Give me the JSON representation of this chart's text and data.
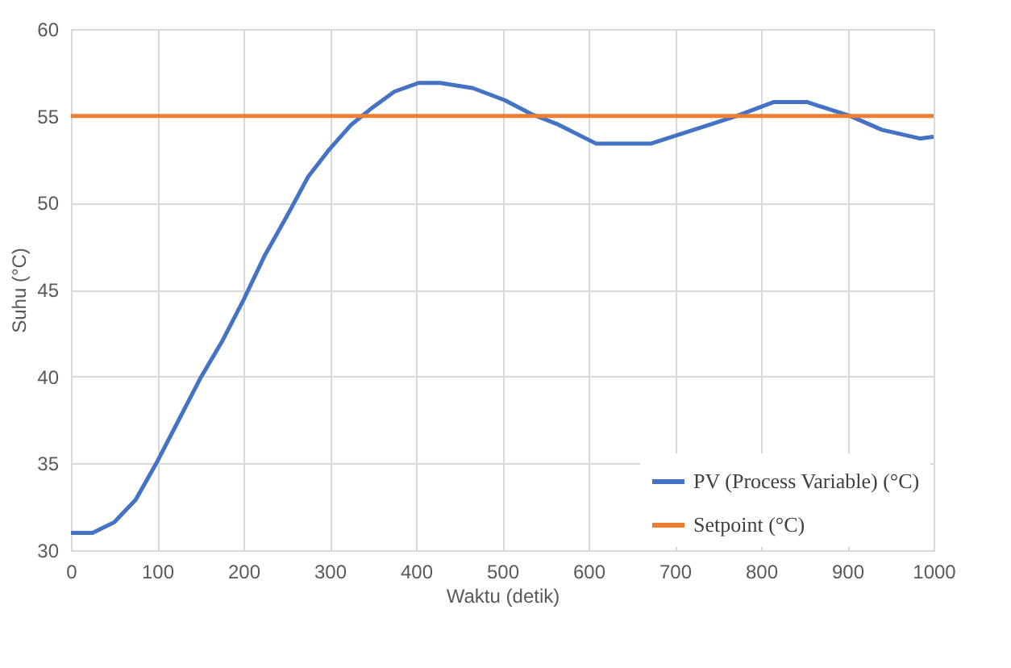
{
  "chart_data": {
    "type": "line",
    "xlabel": "Waktu (detik)",
    "ylabel": "Suhu (°C)",
    "xlim": [
      0,
      1000
    ],
    "xticks": [
      0,
      100,
      200,
      300,
      400,
      500,
      600,
      700,
      800,
      900,
      1000
    ],
    "ylim": [
      30,
      60
    ],
    "yticks": [
      30,
      35,
      40,
      45,
      50,
      55,
      60
    ],
    "grid": true,
    "legend": "bottom right",
    "line_style": "solid",
    "marker": "none",
    "series": [
      {
        "name": "PV (Process Variable) (°C)",
        "color": "#4472c4",
        "x": [
          0,
          25,
          50,
          75,
          100,
          125,
          150,
          175,
          200,
          225,
          250,
          275,
          300,
          325,
          350,
          375,
          403,
          428,
          466,
          503,
          534,
          565,
          609,
          672,
          722,
          772,
          815,
          853,
          903,
          940,
          984,
          1000
        ],
        "values": [
          31.0,
          31.0,
          31.6,
          32.9,
          35.1,
          37.5,
          39.9,
          42.0,
          44.4,
          47.0,
          49.2,
          51.5,
          53.1,
          54.5,
          55.5,
          56.4,
          56.9,
          56.9,
          56.6,
          55.9,
          55.1,
          54.5,
          53.4,
          53.4,
          54.2,
          55.0,
          55.8,
          55.8,
          55.0,
          54.2,
          53.7,
          53.8
        ]
      },
      {
        "name": "Setpoint (°C)",
        "color": "#ed7d31",
        "x": [
          0,
          1000
        ],
        "values": [
          55,
          55
        ]
      }
    ]
  }
}
